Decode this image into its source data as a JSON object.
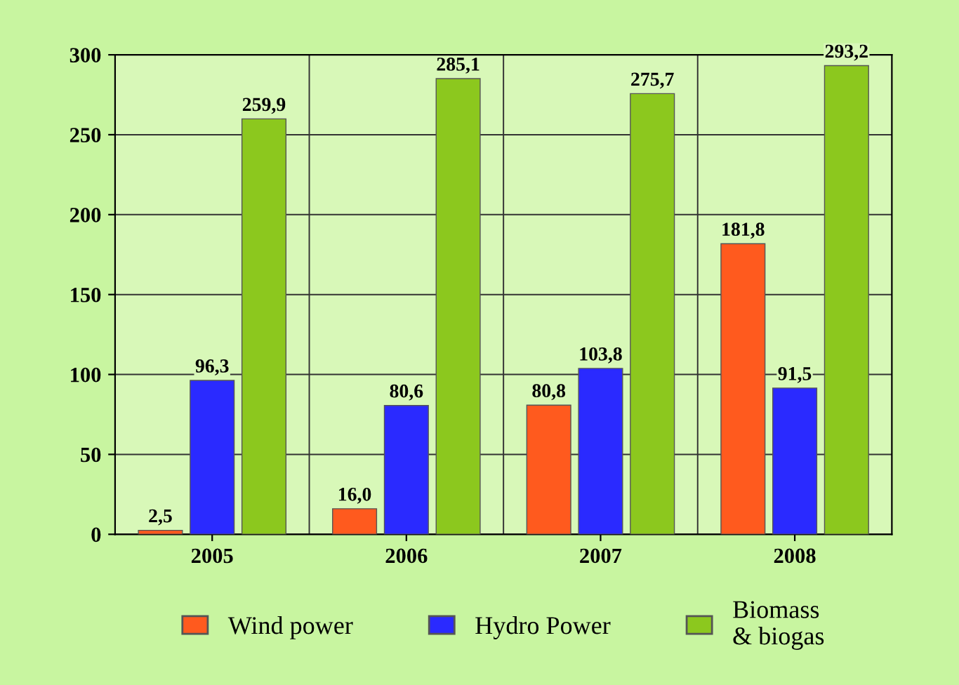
{
  "chart_data": {
    "type": "bar",
    "categories": [
      "2005",
      "2006",
      "2007",
      "2008"
    ],
    "series": [
      {
        "name": "Wind power",
        "color": "#ff5a1e",
        "values": [
          2.5,
          16.0,
          80.8,
          181.8
        ],
        "value_labels": [
          "2,5",
          "16,0",
          "80,8",
          "181,8"
        ]
      },
      {
        "name": "Hydro Power",
        "color": "#2a2aff",
        "values": [
          96.3,
          80.6,
          103.8,
          91.5
        ],
        "value_labels": [
          "96,3",
          "80,6",
          "103,8",
          "91,5"
        ]
      },
      {
        "name": "Biomass\n& biogas",
        "color": "#8cc81e",
        "values": [
          259.9,
          285.1,
          275.7,
          293.2
        ],
        "value_labels": [
          "259,9",
          "285,1",
          "275,7",
          "293,2"
        ]
      }
    ],
    "ylim": [
      0,
      300
    ],
    "yticks": [
      0,
      50,
      100,
      150,
      200,
      250,
      300
    ],
    "grid": true,
    "legend": "bottom"
  }
}
